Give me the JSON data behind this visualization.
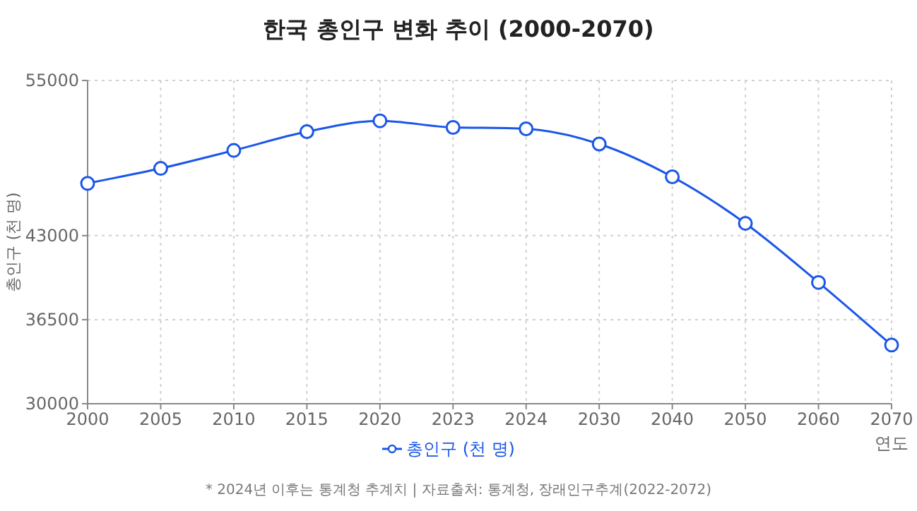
{
  "chart_data": {
    "type": "line",
    "title": "한국 총인구 변화 추이 (2000-2070)",
    "xlabel": "연도",
    "ylabel": "총인구 (천 명)",
    "categories": [
      "2000",
      "2005",
      "2010",
      "2015",
      "2020",
      "2023",
      "2024",
      "2030",
      "2040",
      "2050",
      "2060",
      "2070"
    ],
    "series": [
      {
        "name": "총인구 (천 명)",
        "color": "#1a56e8",
        "values": [
          47040,
          48200,
          49590,
          51040,
          51880,
          51370,
          51260,
          50090,
          47550,
          43950,
          39380,
          34540
        ]
      }
    ],
    "ylim": [
      30000,
      55000
    ],
    "yticks": [
      30000,
      36500,
      43000,
      55000
    ],
    "grid": true,
    "legend": "bottom",
    "marker": "circle",
    "line_style": "solid",
    "annotations": [
      "* 2024년 이후는 통계청 추계치 | 자료출처: 통계청, 장래인구추계(2022-2072)"
    ]
  }
}
